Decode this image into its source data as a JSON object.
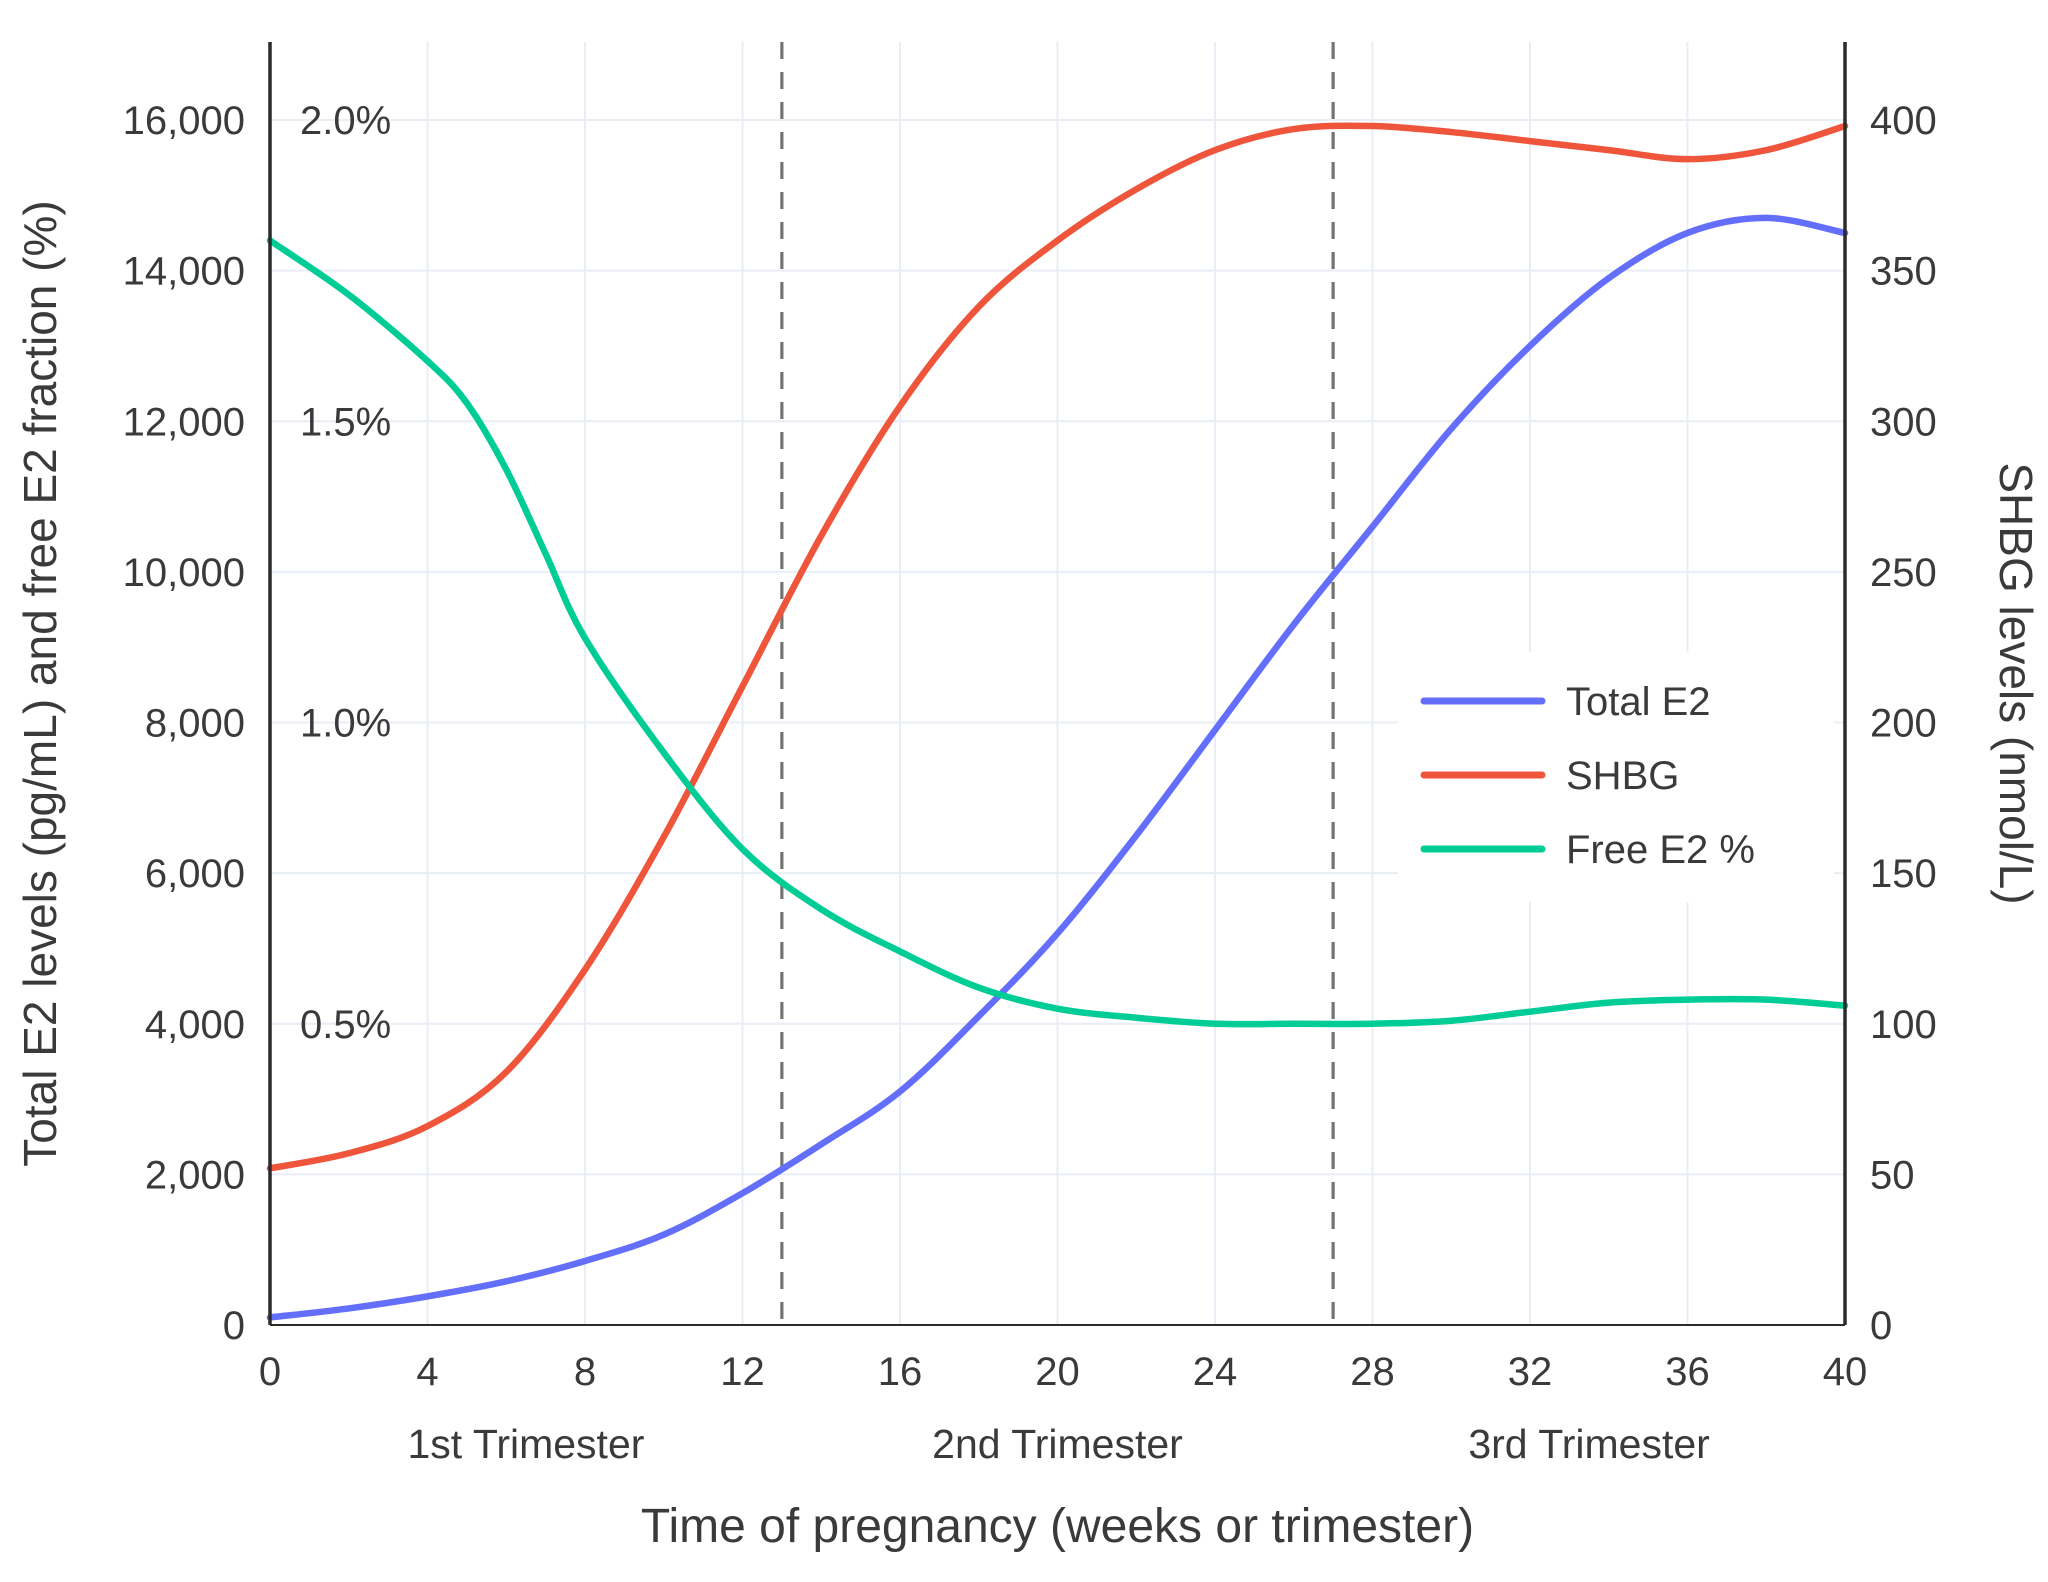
{
  "chart_data": {
    "type": "line",
    "title": "",
    "x_axis": {
      "title": "Time of pregnancy (weeks or trimester)",
      "range": [
        0,
        40
      ],
      "ticks": [
        {
          "v": 0,
          "label": "0"
        },
        {
          "v": 4,
          "label": "4"
        },
        {
          "v": 8,
          "label": "8"
        },
        {
          "v": 12,
          "label": "12"
        },
        {
          "v": 16,
          "label": "16"
        },
        {
          "v": 20,
          "label": "20"
        },
        {
          "v": 24,
          "label": "24"
        },
        {
          "v": 28,
          "label": "28"
        },
        {
          "v": 32,
          "label": "32"
        },
        {
          "v": 36,
          "label": "36"
        },
        {
          "v": 40,
          "label": "40"
        }
      ],
      "trimesters": [
        {
          "label": "1st Trimester",
          "center_week": 6.5
        },
        {
          "label": "2nd Trimester",
          "center_week": 20
        },
        {
          "label": "3rd Trimester",
          "center_week": 33.5
        }
      ],
      "boundary_weeks": [
        13,
        27
      ]
    },
    "left_axis": {
      "title": "Total E2 levels (pg/mL) and free E2 fraction (%)",
      "range": [
        0,
        16000
      ],
      "ticks": [
        {
          "v": 0,
          "label": "0"
        },
        {
          "v": 2000,
          "label": "2,000"
        },
        {
          "v": 4000,
          "label": "4,000"
        },
        {
          "v": 6000,
          "label": "6,000"
        },
        {
          "v": 8000,
          "label": "8,000"
        },
        {
          "v": 10000,
          "label": "10,000"
        },
        {
          "v": 12000,
          "label": "12,000"
        },
        {
          "v": 14000,
          "label": "14,000"
        },
        {
          "v": 16000,
          "label": "16,000"
        }
      ],
      "percent_ticks": [
        {
          "v": 16000,
          "label": "2.0%"
        },
        {
          "v": 12000,
          "label": "1.5%"
        },
        {
          "v": 8000,
          "label": "1.0%"
        },
        {
          "v": 4000,
          "label": "0.5%"
        }
      ]
    },
    "right_axis": {
      "title": "SHBG levels (nmol/L)",
      "range": [
        0,
        400
      ],
      "ticks": [
        {
          "v": 0,
          "label": "0"
        },
        {
          "v": 50,
          "label": "50"
        },
        {
          "v": 100,
          "label": "100"
        },
        {
          "v": 150,
          "label": "150"
        },
        {
          "v": 200,
          "label": "200"
        },
        {
          "v": 250,
          "label": "250"
        },
        {
          "v": 300,
          "label": "300"
        },
        {
          "v": 350,
          "label": "350"
        },
        {
          "v": 400,
          "label": "400"
        }
      ]
    },
    "series": [
      {
        "name": "Total E2",
        "color": "#636EFA",
        "axis": "left",
        "unit": "pg/mL",
        "x": [
          0,
          2,
          4,
          6,
          8,
          10,
          12,
          14,
          16,
          18,
          20,
          22,
          24,
          26,
          28,
          30,
          32,
          34,
          36,
          38,
          40
        ],
        "y": [
          100,
          220,
          380,
          580,
          850,
          1200,
          1750,
          2400,
          3100,
          4100,
          5200,
          6500,
          7900,
          9300,
          10600,
          11900,
          13000,
          13900,
          14500,
          14700,
          14500
        ]
      },
      {
        "name": "SHBG",
        "color": "#EF553B",
        "axis": "right",
        "unit": "nmol/L",
        "x": [
          0,
          2,
          4,
          6,
          8,
          10,
          12,
          14,
          16,
          18,
          20,
          22,
          24,
          26,
          28,
          30,
          32,
          34,
          36,
          38,
          40
        ],
        "y": [
          52,
          57,
          66,
          84,
          118,
          162,
          212,
          262,
          305,
          338,
          360,
          377,
          390,
          397,
          398,
          396,
          393,
          390,
          387,
          390,
          398
        ]
      },
      {
        "name": "Free E2 %",
        "color": "#00CC96",
        "axis": "percent",
        "unit": "%",
        "percent_full_scale": 2.0,
        "x": [
          0,
          2,
          4,
          5,
          6,
          7,
          8,
          10,
          12,
          14,
          16,
          18,
          20,
          22,
          24,
          26,
          28,
          30,
          32,
          34,
          36,
          38,
          40
        ],
        "y": [
          1.8,
          1.71,
          1.6,
          1.53,
          1.42,
          1.28,
          1.14,
          0.95,
          0.79,
          0.69,
          0.62,
          0.56,
          0.525,
          0.51,
          0.5,
          0.5,
          0.5,
          0.505,
          0.52,
          0.535,
          0.54,
          0.54,
          0.53
        ]
      }
    ],
    "legend": {
      "entries": [
        "Total E2",
        "SHBG",
        "Free E2 %"
      ],
      "position": "middle-right"
    },
    "style": {
      "background": "#FFFFFF",
      "grid_color": "#E9EEF6",
      "spine_color": "#2B2B2B",
      "dashed_color": "#737373",
      "text_color": "#3A3A3A",
      "grid": "on"
    }
  }
}
